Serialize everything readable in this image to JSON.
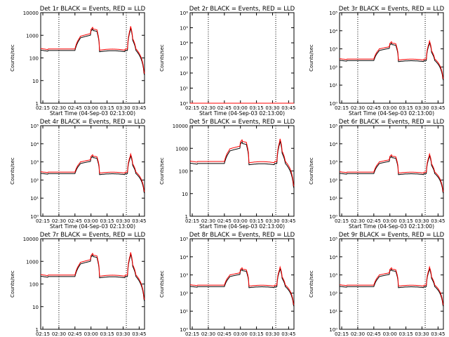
{
  "figure": {
    "background": "#ffffff",
    "axis_color": "#000000",
    "events_color": "#000000",
    "lld_color": "#ff0000",
    "x_ticks": [
      "02:15",
      "02:30",
      "02:45",
      "03:00",
      "03:15",
      "03:30",
      "03:45"
    ],
    "x_label": "Start Time (04-Sep-03 02:13:00)",
    "y_label": "Counts/sec"
  },
  "chart_data": [
    {
      "type": "line",
      "detector": "1r",
      "title": "Det 1r BLACK = Events, RED = LLD",
      "scale": "log",
      "ylim": [
        1,
        10000
      ],
      "y_ticks": [
        {
          "value": 1,
          "label": "1"
        },
        {
          "value": 10,
          "label": "10"
        },
        {
          "value": 100,
          "label": "100"
        },
        {
          "value": 1000,
          "label": "1000"
        },
        {
          "value": 10000,
          "label": "10000"
        }
      ],
      "series": [
        {
          "name": "Events",
          "color": "#000000",
          "style": "A",
          "scale": 0.85
        },
        {
          "name": "LLD",
          "color": "#ff0000",
          "style": "A",
          "scale": 1.0
        }
      ]
    },
    {
      "type": "line",
      "detector": "2r",
      "title": "Det 2r BLACK = Events, RED = LLD",
      "scale": "log",
      "ylim": [
        1,
        1000000
      ],
      "y_ticks": [
        {
          "value": 1,
          "label": "10⁰"
        },
        {
          "value": 10,
          "label": "10¹"
        },
        {
          "value": 100,
          "label": "10²"
        },
        {
          "value": 1000,
          "label": "10³"
        },
        {
          "value": 10000,
          "label": "10⁴"
        },
        {
          "value": 100000,
          "label": "10⁵"
        },
        {
          "value": 1000000,
          "label": "10⁶"
        }
      ],
      "series": [
        {
          "name": "Events",
          "color": "#000000",
          "style": "B",
          "scale": 1.0
        },
        {
          "name": "LLD",
          "color": "#ff0000",
          "style": "B",
          "scale": 1.0
        }
      ]
    },
    {
      "type": "line",
      "detector": "3r",
      "title": "Det 3r BLACK = Events, RED = LLD",
      "scale": "log",
      "ylim": [
        1,
        100000
      ],
      "y_ticks": [
        {
          "value": 1,
          "label": "10⁰"
        },
        {
          "value": 10,
          "label": "10¹"
        },
        {
          "value": 100,
          "label": "10²"
        },
        {
          "value": 1000,
          "label": "10³"
        },
        {
          "value": 10000,
          "label": "10⁴"
        },
        {
          "value": 100000,
          "label": "10⁵"
        }
      ],
      "series": [
        {
          "name": "Events",
          "color": "#000000",
          "style": "A",
          "scale": 0.9
        },
        {
          "name": "LLD",
          "color": "#ff0000",
          "style": "A",
          "scale": 1.1
        }
      ]
    },
    {
      "type": "line",
      "detector": "4r",
      "title": "Det 4r BLACK = Events, RED = LLD",
      "scale": "log",
      "ylim": [
        1,
        100000
      ],
      "y_ticks": [
        {
          "value": 1,
          "label": "10⁰"
        },
        {
          "value": 10,
          "label": "10¹"
        },
        {
          "value": 100,
          "label": "10²"
        },
        {
          "value": 1000,
          "label": "10³"
        },
        {
          "value": 10000,
          "label": "10⁴"
        },
        {
          "value": 100000,
          "label": "10⁵"
        }
      ],
      "series": [
        {
          "name": "Events",
          "color": "#000000",
          "style": "A",
          "scale": 0.9
        },
        {
          "name": "LLD",
          "color": "#ff0000",
          "style": "A",
          "scale": 1.1
        }
      ]
    },
    {
      "type": "line",
      "detector": "5r",
      "title": "Det 5r BLACK = Events, RED = LLD",
      "scale": "log",
      "ylim": [
        1,
        10000
      ],
      "y_ticks": [
        {
          "value": 1,
          "label": "1"
        },
        {
          "value": 10,
          "label": "10"
        },
        {
          "value": 100,
          "label": "100"
        },
        {
          "value": 1000,
          "label": "1000"
        },
        {
          "value": 10000,
          "label": "10000"
        }
      ],
      "series": [
        {
          "name": "Events",
          "color": "#000000",
          "style": "A",
          "scale": 0.85
        },
        {
          "name": "LLD",
          "color": "#ff0000",
          "style": "A",
          "scale": 1.05
        }
      ]
    },
    {
      "type": "line",
      "detector": "6r",
      "title": "Det 6r BLACK = Events, RED = LLD",
      "scale": "log",
      "ylim": [
        1,
        100000
      ],
      "y_ticks": [
        {
          "value": 1,
          "label": "10⁰"
        },
        {
          "value": 10,
          "label": "10¹"
        },
        {
          "value": 100,
          "label": "10²"
        },
        {
          "value": 1000,
          "label": "10³"
        },
        {
          "value": 10000,
          "label": "10⁴"
        },
        {
          "value": 100000,
          "label": "10⁵"
        }
      ],
      "series": [
        {
          "name": "Events",
          "color": "#000000",
          "style": "A",
          "scale": 0.9
        },
        {
          "name": "LLD",
          "color": "#ff0000",
          "style": "A",
          "scale": 1.1
        }
      ]
    },
    {
      "type": "line",
      "detector": "7r",
      "title": "Det 7r BLACK = Events, RED = LLD",
      "scale": "log",
      "ylim": [
        1,
        10000
      ],
      "y_ticks": [
        {
          "value": 1,
          "label": "1"
        },
        {
          "value": 10,
          "label": "10"
        },
        {
          "value": 100,
          "label": "100"
        },
        {
          "value": 1000,
          "label": "1000"
        },
        {
          "value": 10000,
          "label": "10000"
        }
      ],
      "series": [
        {
          "name": "Events",
          "color": "#000000",
          "style": "A",
          "scale": 0.85
        },
        {
          "name": "LLD",
          "color": "#ff0000",
          "style": "A",
          "scale": 1.0
        }
      ]
    },
    {
      "type": "line",
      "detector": "8r",
      "title": "Det 8r BLACK = Events, RED = LLD",
      "scale": "log",
      "ylim": [
        1,
        100000
      ],
      "y_ticks": [
        {
          "value": 1,
          "label": "10⁰"
        },
        {
          "value": 10,
          "label": "10¹"
        },
        {
          "value": 100,
          "label": "10²"
        },
        {
          "value": 1000,
          "label": "10³"
        },
        {
          "value": 10000,
          "label": "10⁴"
        },
        {
          "value": 100000,
          "label": "10⁵"
        }
      ],
      "series": [
        {
          "name": "Events",
          "color": "#000000",
          "style": "A",
          "scale": 0.9
        },
        {
          "name": "LLD",
          "color": "#ff0000",
          "style": "A",
          "scale": 1.1
        }
      ]
    },
    {
      "type": "line",
      "detector": "9r",
      "title": "Det 9r BLACK = Events, RED = LLD",
      "scale": "log",
      "ylim": [
        1,
        100000
      ],
      "y_ticks": [
        {
          "value": 1,
          "label": "10⁰"
        },
        {
          "value": 10,
          "label": "10¹"
        },
        {
          "value": 100,
          "label": "10²"
        },
        {
          "value": 1000,
          "label": "10³"
        },
        {
          "value": 10000,
          "label": "10⁴"
        },
        {
          "value": 100000,
          "label": "10⁵"
        }
      ],
      "series": [
        {
          "name": "Events",
          "color": "#000000",
          "style": "A",
          "scale": 0.9
        },
        {
          "name": "LLD",
          "color": "#ff0000",
          "style": "A",
          "scale": 1.1
        }
      ]
    }
  ]
}
